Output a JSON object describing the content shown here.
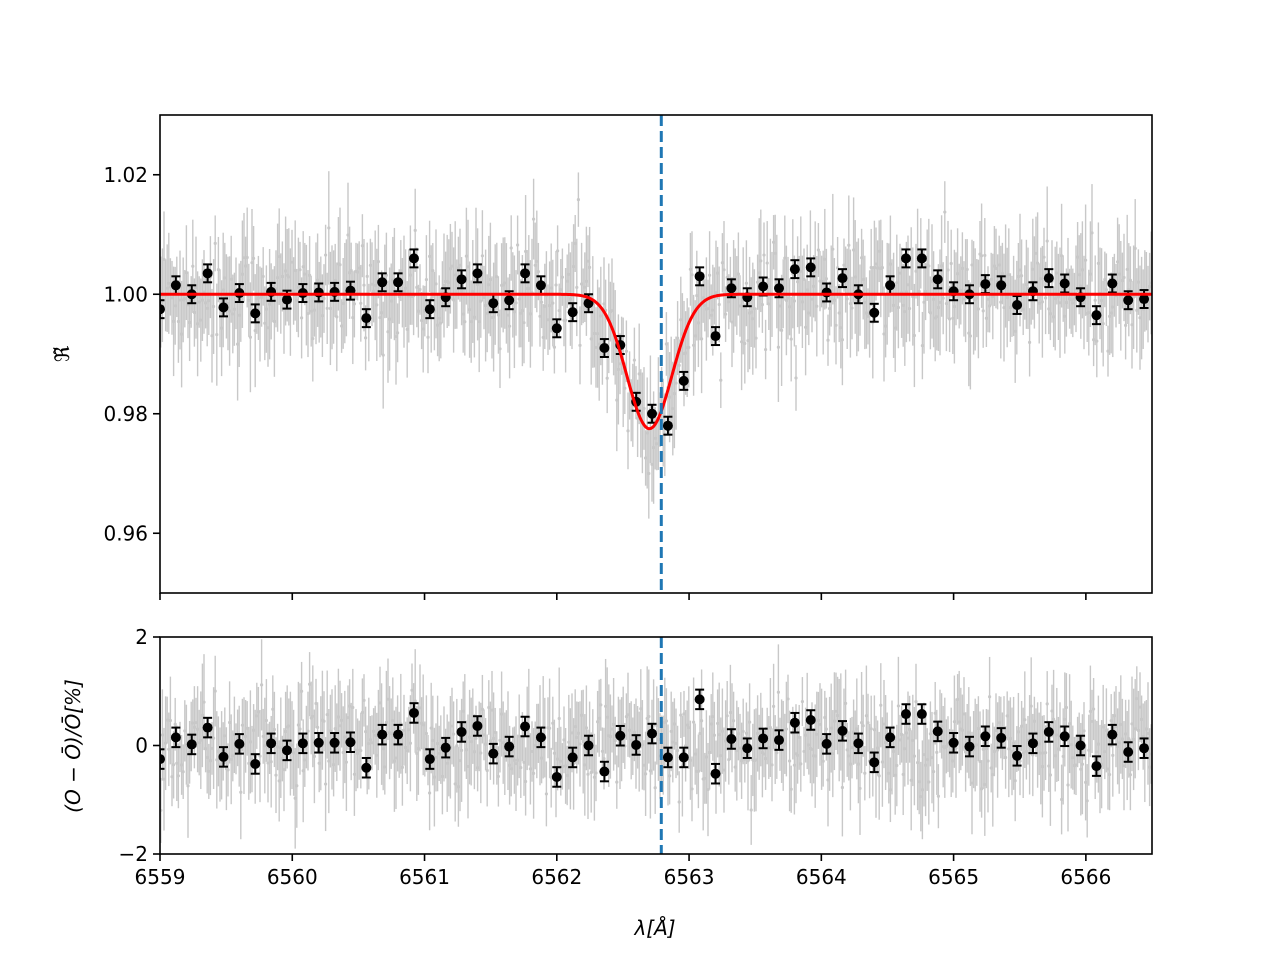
{
  "chart_data": [
    {
      "type": "scatter",
      "panel": "top",
      "ylabel": "ℜ̃",
      "xlim": [
        6559,
        6566.5
      ],
      "ylim": [
        0.95,
        1.03
      ],
      "xticks": [
        6559,
        6560,
        6561,
        6562,
        6563,
        6564,
        6565,
        6566
      ],
      "yticks": [
        0.96,
        0.98,
        1.0,
        1.02
      ],
      "ytick_labels": [
        "0.96",
        "0.98",
        "1.00",
        "1.02"
      ],
      "grid": false,
      "vline_x": 6562.79,
      "vline_color": "#1f77b4",
      "fit_color": "#ff0000",
      "fit_model": {
        "type": "gaussian",
        "baseline": 1.0,
        "depth": 0.0225,
        "center": 6562.7,
        "sigma": 0.17
      },
      "binned_color": "#000000",
      "raw_color": "#c8c8c8",
      "binned_x": [
        6559.0,
        6559.12,
        6559.24,
        6559.36,
        6559.48,
        6559.6,
        6559.72,
        6559.84,
        6559.96,
        6560.08,
        6560.2,
        6560.32,
        6560.44,
        6560.56,
        6560.68,
        6560.8,
        6560.92,
        6561.04,
        6561.16,
        6561.28,
        6561.4,
        6561.52,
        6561.64,
        6561.76,
        6561.88,
        6562.0,
        6562.12,
        6562.24,
        6562.36,
        6562.48,
        6562.6,
        6562.72,
        6562.84,
        6562.96,
        6563.08,
        6563.2,
        6563.32,
        6563.44,
        6563.56,
        6563.68,
        6563.8,
        6563.92,
        6564.04,
        6564.16,
        6564.28,
        6564.4,
        6564.52,
        6564.64,
        6564.76,
        6564.88,
        6565.0,
        6565.12,
        6565.24,
        6565.36,
        6565.48,
        6565.6,
        6565.72,
        6565.84,
        6565.96,
        6566.08,
        6566.2,
        6566.32,
        6566.44
      ],
      "binned_y": [
        0.9975,
        1.0015,
        1.0,
        1.0035,
        0.9978,
        1.0002,
        0.9968,
        1.0004,
        0.9991,
        1.0002,
        1.0003,
        1.0004,
        1.0006,
        0.996,
        1.002,
        1.002,
        1.006,
        0.9975,
        0.9995,
        1.0025,
        1.0035,
        0.9985,
        0.999,
        1.0035,
        1.0015,
        0.9943,
        0.997,
        0.9985,
        0.991,
        0.9915,
        0.982,
        0.98,
        0.978,
        0.9855,
        1.003,
        0.993,
        1.001,
        0.9995,
        1.0013,
        1.001,
        1.0042,
        1.0045,
        1.0003,
        1.0027,
        1.0,
        0.9969,
        1.0015,
        1.006,
        1.006,
        1.0025,
        1.0005,
        1.0,
        1.0017,
        1.0015,
        0.9982,
        1.0005,
        1.0027,
        1.0018,
        0.9995,
        0.9965,
        1.0018,
        0.999,
        0.9992
      ],
      "binned_err": 0.0015,
      "raw_noise": 0.006
    },
    {
      "type": "scatter",
      "panel": "bottom",
      "xlabel": "λ[Å]",
      "ylabel": "(O − Ō)/Ō[%]",
      "xlim": [
        6559,
        6566.5
      ],
      "ylim": [
        -2,
        2
      ],
      "xticks": [
        6559,
        6560,
        6561,
        6562,
        6563,
        6564,
        6565,
        6566
      ],
      "xtick_labels": [
        "6559",
        "6560",
        "6561",
        "6562",
        "6563",
        "6564",
        "6565",
        "6566"
      ],
      "yticks": [
        -2,
        0,
        2
      ],
      "ytick_labels": [
        "−2",
        "0",
        "2"
      ],
      "grid": false,
      "vline_x": 6562.79,
      "vline_color": "#1f77b4",
      "binned_color": "#000000",
      "raw_color": "#c8c8c8",
      "binned_x": [
        6559.0,
        6559.12,
        6559.24,
        6559.36,
        6559.48,
        6559.6,
        6559.72,
        6559.84,
        6559.96,
        6560.08,
        6560.2,
        6560.32,
        6560.44,
        6560.56,
        6560.68,
        6560.8,
        6560.92,
        6561.04,
        6561.16,
        6561.28,
        6561.4,
        6561.52,
        6561.64,
        6561.76,
        6561.88,
        6562.0,
        6562.12,
        6562.24,
        6562.36,
        6562.48,
        6562.6,
        6562.72,
        6562.84,
        6562.96,
        6563.08,
        6563.2,
        6563.32,
        6563.44,
        6563.56,
        6563.68,
        6563.8,
        6563.92,
        6564.04,
        6564.16,
        6564.28,
        6564.4,
        6564.52,
        6564.64,
        6564.76,
        6564.88,
        6565.0,
        6565.12,
        6565.24,
        6565.36,
        6565.48,
        6565.6,
        6565.72,
        6565.84,
        6565.96,
        6566.08,
        6566.2,
        6566.32,
        6566.44
      ],
      "binned_y": [
        -0.25,
        0.15,
        0.02,
        0.33,
        -0.21,
        0.03,
        -0.34,
        0.04,
        -0.09,
        0.04,
        0.05,
        0.05,
        0.06,
        -0.41,
        0.2,
        0.2,
        0.6,
        -0.25,
        -0.04,
        0.25,
        0.36,
        -0.15,
        -0.02,
        0.35,
        0.15,
        -0.58,
        -0.22,
        0.0,
        -0.48,
        0.18,
        0.01,
        0.22,
        -0.22,
        -0.22,
        0.85,
        -0.52,
        0.12,
        -0.05,
        0.13,
        0.1,
        0.42,
        0.47,
        0.03,
        0.27,
        0.04,
        -0.31,
        0.15,
        0.58,
        0.58,
        0.26,
        0.05,
        -0.02,
        0.17,
        0.14,
        -0.19,
        0.04,
        0.25,
        0.17,
        0.0,
        -0.38,
        0.2,
        -0.12,
        -0.05
      ],
      "binned_err": 0.18,
      "raw_noise": 0.6
    }
  ]
}
